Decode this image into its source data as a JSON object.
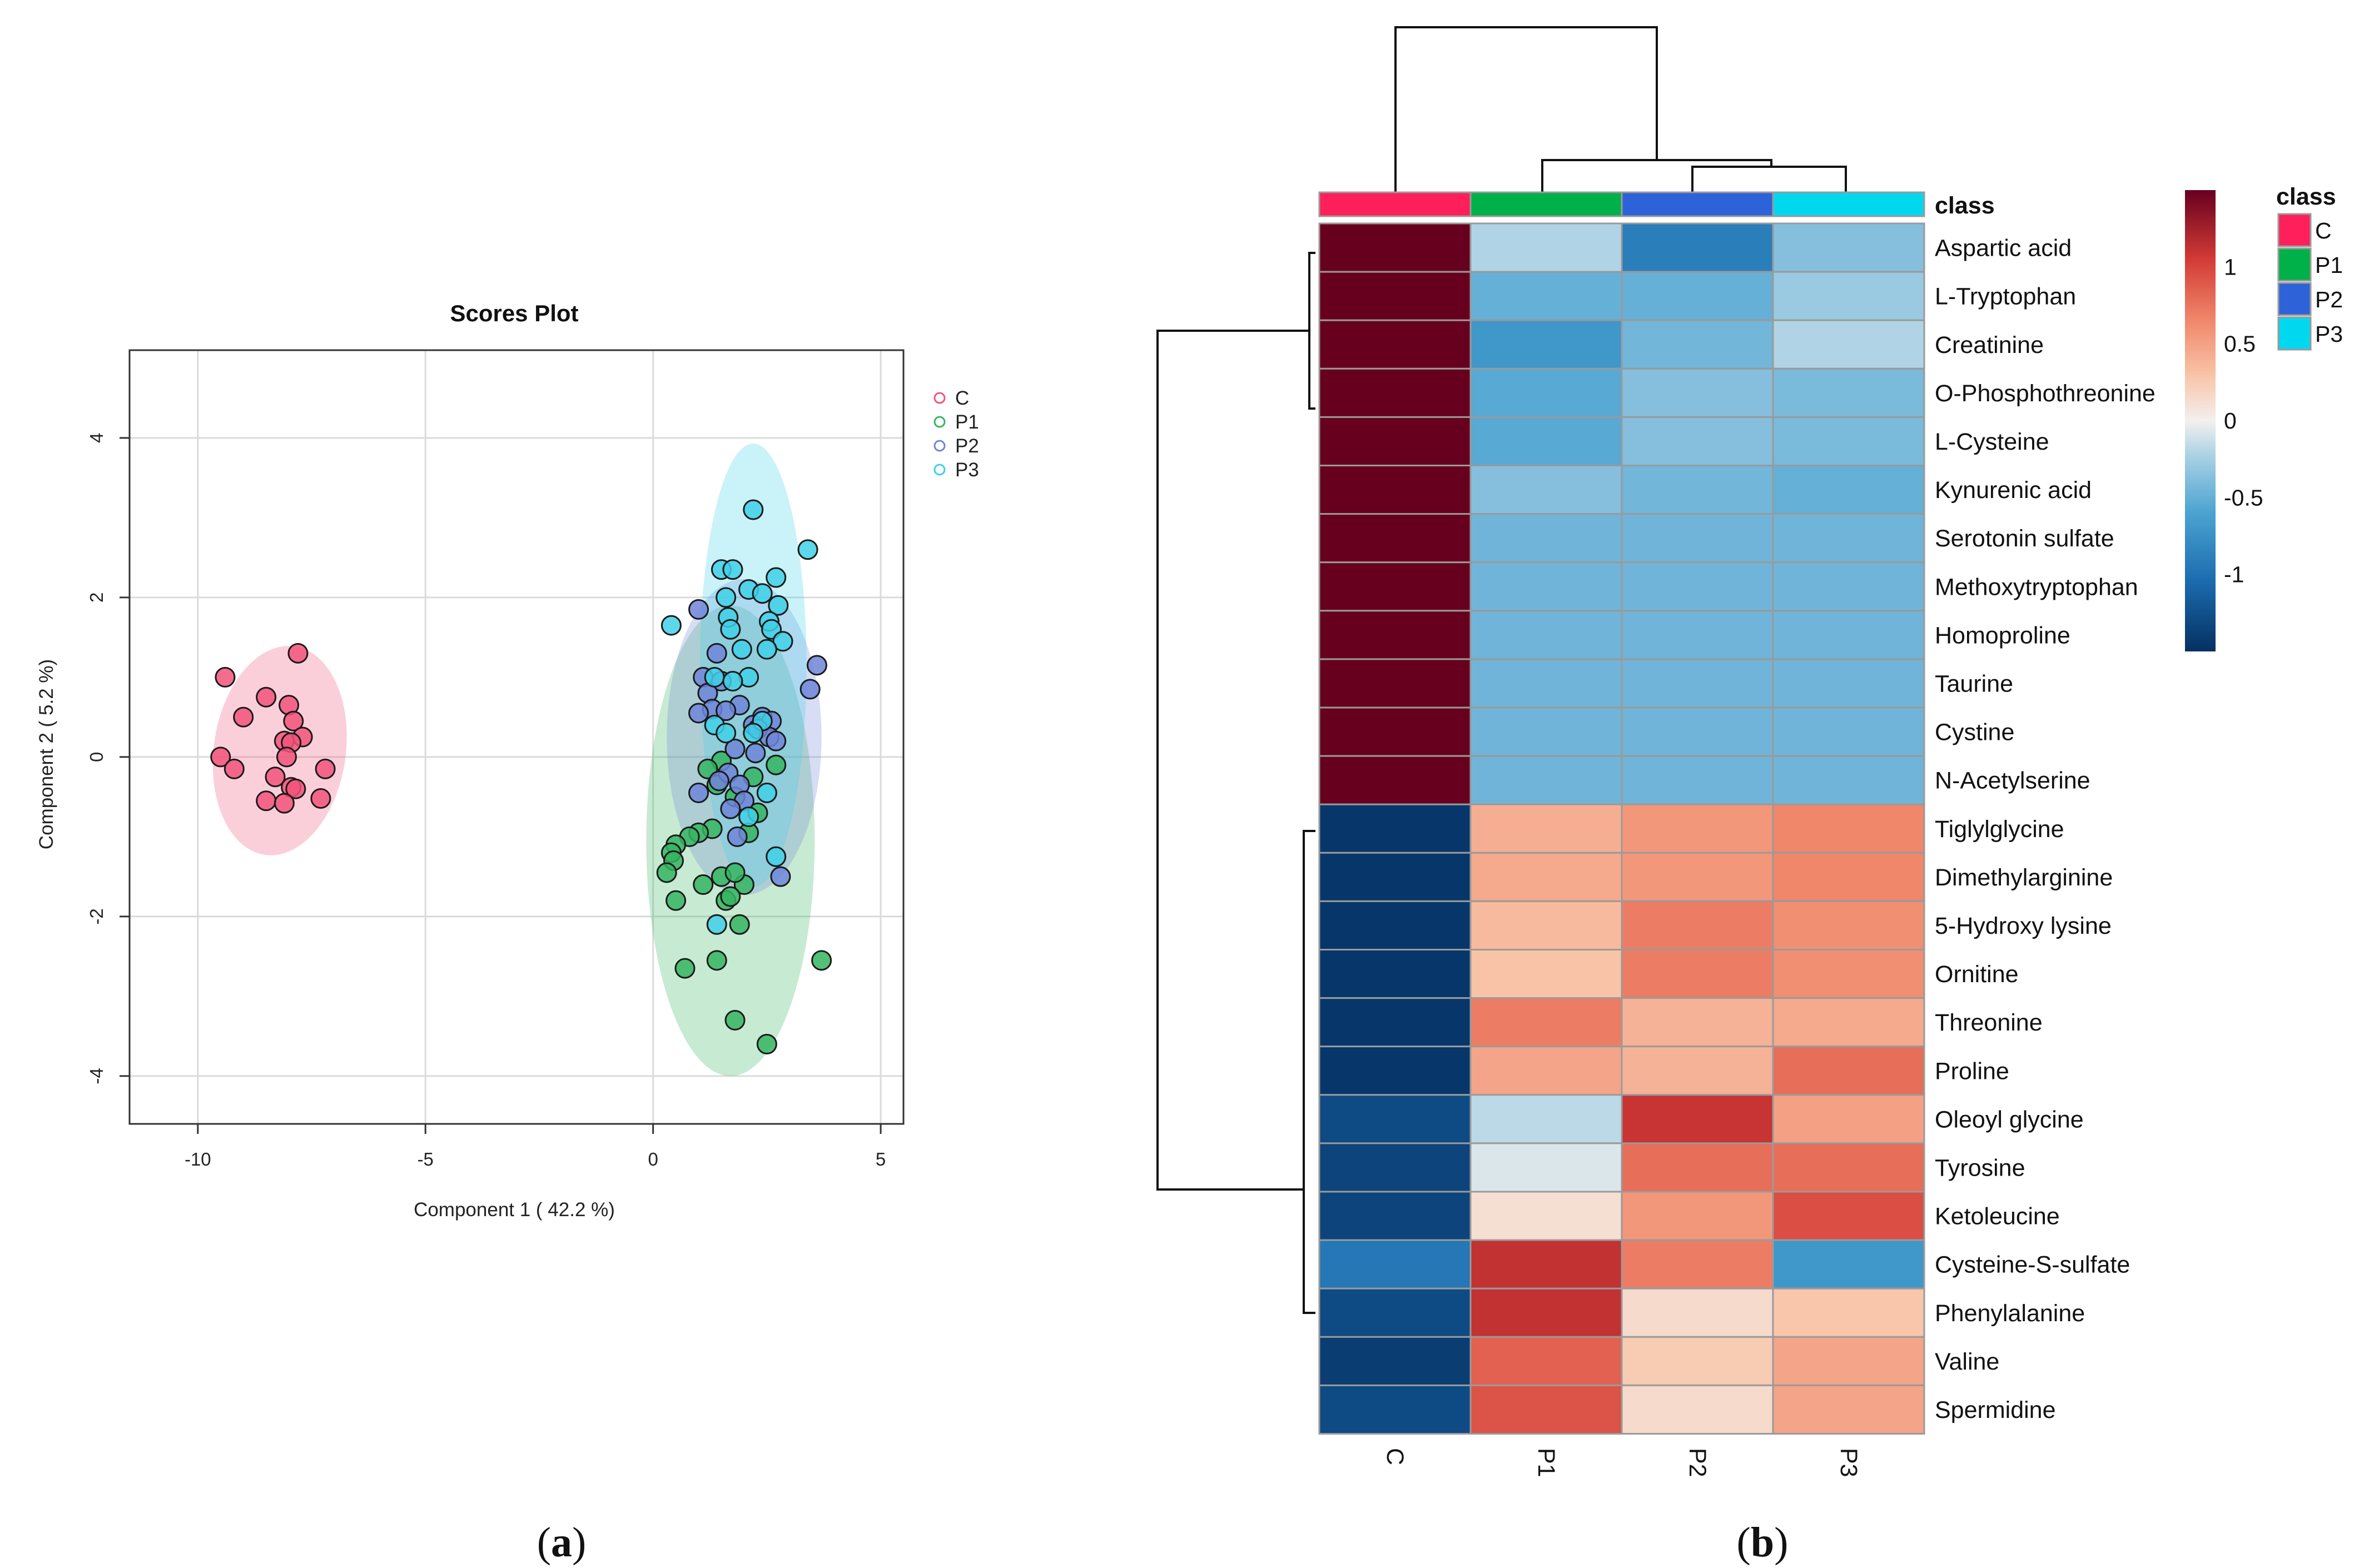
{
  "panel_labels": {
    "a_open": "(",
    "a_letter": "a",
    "a_close": ")",
    "b_open": "(",
    "b_letter": "b",
    "b_close": ")"
  },
  "chart_data": [
    {
      "type": "scatter",
      "title": "Scores Plot",
      "xlabel": "Component 1 ( 42.2 %)",
      "ylabel": "Component 2 ( 5.2 %)",
      "xlim": [
        -11.5,
        5.5
      ],
      "ylim": [
        -4.6,
        5.1
      ],
      "xticks": [
        -10,
        -5,
        0,
        5
      ],
      "yticks": [
        -4,
        -2,
        0,
        2,
        4
      ],
      "grid": true,
      "legend_position": "right-top",
      "series": [
        {
          "name": "C",
          "color": "#F2547A",
          "ellipse": {
            "cx": -8.2,
            "cy": 0.08,
            "rx": 1.45,
            "ry": 1.32,
            "angle": 8
          },
          "points": [
            [
              -9.4,
              1.0
            ],
            [
              -7.8,
              1.3
            ],
            [
              -8.5,
              0.75
            ],
            [
              -9.0,
              0.5
            ],
            [
              -8.0,
              0.65
            ],
            [
              -7.9,
              0.45
            ],
            [
              -7.7,
              0.25
            ],
            [
              -8.1,
              0.2
            ],
            [
              -7.95,
              0.18
            ],
            [
              -8.05,
              0.0
            ],
            [
              -9.5,
              0.0
            ],
            [
              -9.2,
              -0.15
            ],
            [
              -7.2,
              -0.15
            ],
            [
              -8.3,
              -0.25
            ],
            [
              -7.95,
              -0.38
            ],
            [
              -7.85,
              -0.4
            ],
            [
              -8.5,
              -0.55
            ],
            [
              -8.1,
              -0.58
            ],
            [
              -7.3,
              -0.52
            ]
          ]
        },
        {
          "name": "P1",
          "color": "#35B560",
          "ellipse": {
            "cx": 1.7,
            "cy": -1.05,
            "rx": 1.85,
            "ry": 2.95,
            "angle": 0
          },
          "points": [
            [
              2.7,
              -0.1
            ],
            [
              1.5,
              -0.05
            ],
            [
              1.2,
              -0.15
            ],
            [
              2.2,
              -0.25
            ],
            [
              1.4,
              -0.35
            ],
            [
              1.8,
              -0.5
            ],
            [
              2.3,
              -0.7
            ],
            [
              2.1,
              -0.95
            ],
            [
              1.3,
              -0.9
            ],
            [
              1.0,
              -0.95
            ],
            [
              0.8,
              -1.0
            ],
            [
              0.5,
              -1.1
            ],
            [
              0.4,
              -1.2
            ],
            [
              0.45,
              -1.3
            ],
            [
              0.3,
              -1.45
            ],
            [
              1.5,
              -1.5
            ],
            [
              1.1,
              -1.6
            ],
            [
              2.0,
              -1.6
            ],
            [
              1.8,
              -1.45
            ],
            [
              1.6,
              -1.8
            ],
            [
              1.7,
              -1.75
            ],
            [
              0.5,
              -1.8
            ],
            [
              1.9,
              -2.1
            ],
            [
              3.7,
              -2.55
            ],
            [
              1.4,
              -2.55
            ],
            [
              0.7,
              -2.65
            ],
            [
              1.8,
              -3.3
            ],
            [
              2.5,
              -3.6
            ]
          ]
        },
        {
          "name": "P2",
          "color": "#6E85D8",
          "ellipse": {
            "cx": 2.0,
            "cy": 0.25,
            "rx": 1.7,
            "ry": 1.98,
            "angle": 0
          },
          "points": [
            [
              1.0,
              1.85
            ],
            [
              1.4,
              1.3
            ],
            [
              3.6,
              1.15
            ],
            [
              1.1,
              1.0
            ],
            [
              1.5,
              0.95
            ],
            [
              3.45,
              0.85
            ],
            [
              1.2,
              0.8
            ],
            [
              1.9,
              0.65
            ],
            [
              1.3,
              0.6
            ],
            [
              1.6,
              0.58
            ],
            [
              1.0,
              0.55
            ],
            [
              2.4,
              0.5
            ],
            [
              2.6,
              0.45
            ],
            [
              2.2,
              0.4
            ],
            [
              2.3,
              0.35
            ],
            [
              2.55,
              0.25
            ],
            [
              2.7,
              0.2
            ],
            [
              1.8,
              0.1
            ],
            [
              2.25,
              0.05
            ],
            [
              1.65,
              -0.2
            ],
            [
              1.45,
              -0.3
            ],
            [
              1.9,
              -0.35
            ],
            [
              1.0,
              -0.45
            ],
            [
              2.0,
              -0.55
            ],
            [
              1.7,
              -0.65
            ],
            [
              2.8,
              -1.5
            ],
            [
              1.85,
              -1.0
            ]
          ]
        },
        {
          "name": "P3",
          "color": "#3FD0E8",
          "ellipse": {
            "cx": 2.2,
            "cy": 1.15,
            "rx": 1.17,
            "ry": 2.78,
            "angle": 0
          },
          "points": [
            [
              2.2,
              3.1
            ],
            [
              3.4,
              2.6
            ],
            [
              1.5,
              2.35
            ],
            [
              1.75,
              2.35
            ],
            [
              2.7,
              2.25
            ],
            [
              2.1,
              2.1
            ],
            [
              2.4,
              2.05
            ],
            [
              1.6,
              2.0
            ],
            [
              2.75,
              1.9
            ],
            [
              1.65,
              1.75
            ],
            [
              2.55,
              1.7
            ],
            [
              0.4,
              1.65
            ],
            [
              1.7,
              1.6
            ],
            [
              2.6,
              1.6
            ],
            [
              2.85,
              1.45
            ],
            [
              1.95,
              1.35
            ],
            [
              2.5,
              1.35
            ],
            [
              1.35,
              1.0
            ],
            [
              2.1,
              1.0
            ],
            [
              1.75,
              0.95
            ],
            [
              1.35,
              0.4
            ],
            [
              2.4,
              0.45
            ],
            [
              1.6,
              0.3
            ],
            [
              2.2,
              0.3
            ],
            [
              2.5,
              -0.45
            ],
            [
              2.1,
              -0.75
            ],
            [
              2.7,
              -1.25
            ],
            [
              1.4,
              -2.1
            ]
          ]
        }
      ]
    },
    {
      "type": "heatmap",
      "annotation_title": "class",
      "columns": [
        "C",
        "P1",
        "P2",
        "P3"
      ],
      "column_classes": [
        "C",
        "P1",
        "P2",
        "P3"
      ],
      "class_colors": {
        "C": "#FF1F5A",
        "P1": "#00B048",
        "P2": "#2E62D9",
        "P3": "#00D8F0"
      },
      "rows": [
        "Aspartic acid",
        "L-Tryptophan",
        "Creatinine",
        "O-Phosphothreonine",
        "L-Cysteine",
        "Kynurenic acid",
        "Serotonin sulfate",
        "Methoxytryptophan",
        "Homoproline",
        "Taurine",
        "Cystine",
        "N-Acetylserine",
        "Tiglylglycine",
        "Dimethylarginine",
        "5-Hydroxy lysine",
        "Ornitine",
        "Threonine",
        "Proline",
        "Oleoyl glycine",
        "Tyrosine",
        "Ketoleucine",
        "Cysteine-S-sulfate",
        "Phenylalanine",
        "Valine",
        "Spermidine"
      ],
      "values": [
        [
          1.5,
          -0.22,
          -0.9,
          -0.38
        ],
        [
          1.5,
          -0.5,
          -0.5,
          -0.3
        ],
        [
          1.5,
          -0.7,
          -0.45,
          -0.22
        ],
        [
          1.5,
          -0.55,
          -0.38,
          -0.42
        ],
        [
          1.5,
          -0.55,
          -0.38,
          -0.42
        ],
        [
          1.5,
          -0.38,
          -0.45,
          -0.5
        ],
        [
          1.5,
          -0.46,
          -0.46,
          -0.46
        ],
        [
          1.5,
          -0.46,
          -0.46,
          -0.46
        ],
        [
          1.5,
          -0.46,
          -0.46,
          -0.46
        ],
        [
          1.5,
          -0.46,
          -0.46,
          -0.46
        ],
        [
          1.5,
          -0.46,
          -0.46,
          -0.46
        ],
        [
          1.5,
          -0.46,
          -0.46,
          -0.46
        ],
        [
          -1.45,
          0.42,
          0.55,
          0.65
        ],
        [
          -1.45,
          0.45,
          0.55,
          0.65
        ],
        [
          -1.45,
          0.35,
          0.7,
          0.6
        ],
        [
          -1.45,
          0.3,
          0.7,
          0.6
        ],
        [
          -1.45,
          0.7,
          0.4,
          0.45
        ],
        [
          -1.45,
          0.48,
          0.4,
          0.78
        ],
        [
          -1.3,
          -0.18,
          1.1,
          0.5
        ],
        [
          -1.35,
          -0.08,
          0.78,
          0.78
        ],
        [
          -1.35,
          0.12,
          0.55,
          0.95
        ],
        [
          -0.95,
          1.12,
          0.7,
          -0.7
        ],
        [
          -1.3,
          1.12,
          0.15,
          0.28
        ],
        [
          -1.4,
          0.85,
          0.25,
          0.48
        ],
        [
          -1.3,
          0.92,
          0.15,
          0.48
        ]
      ],
      "colorbar": {
        "ticks": [
          1,
          0.5,
          0,
          -0.5,
          -1
        ],
        "tick_labels": [
          "1",
          "0.5",
          "0",
          "-0.5",
          "-1"
        ],
        "range": [
          -1.5,
          1.5
        ]
      }
    }
  ]
}
